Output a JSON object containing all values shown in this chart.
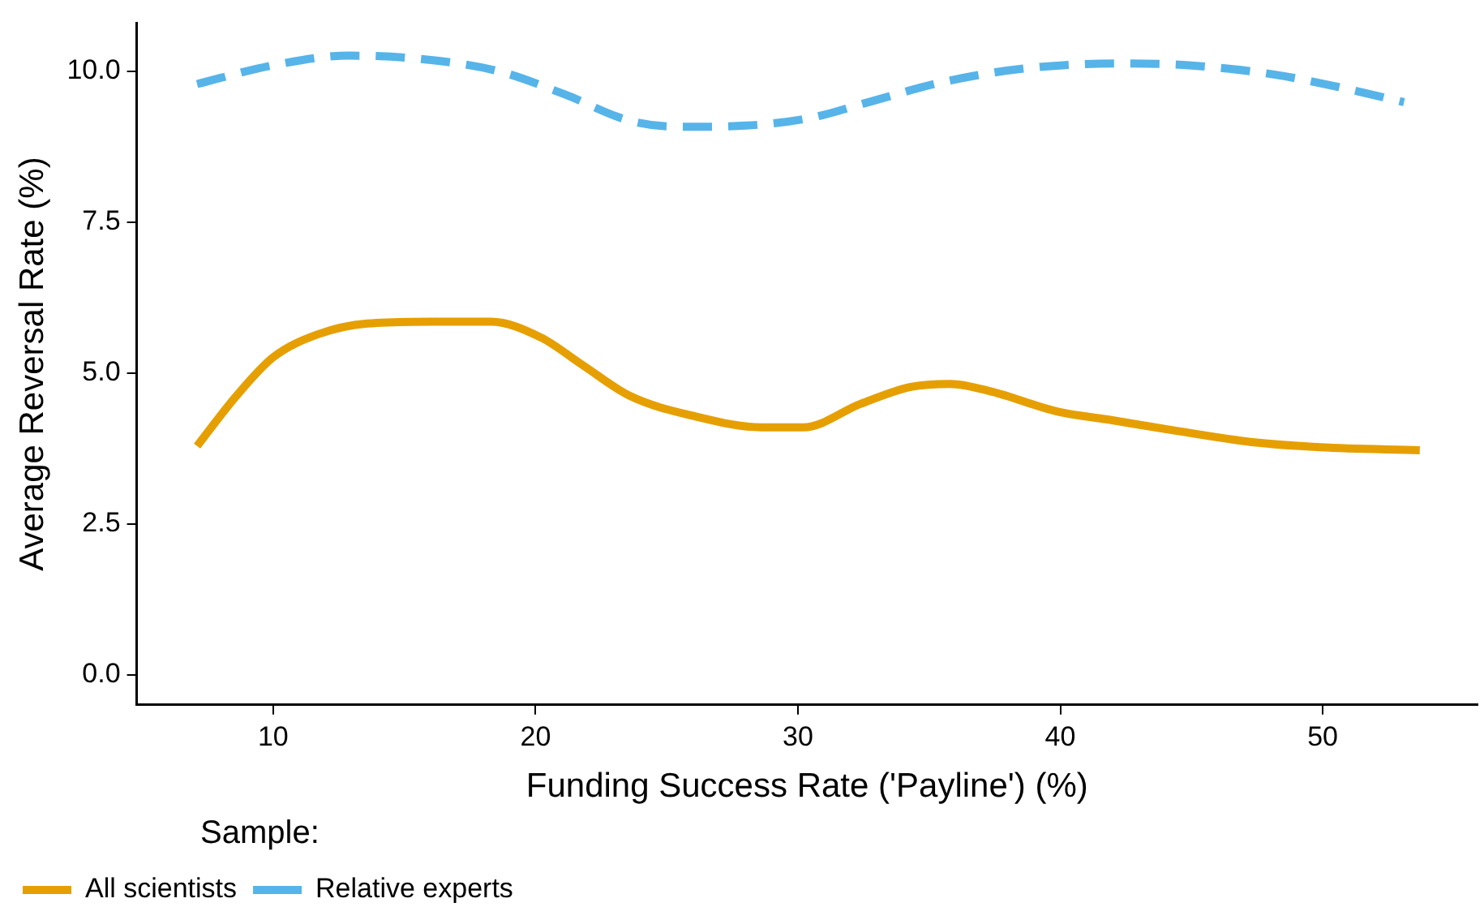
{
  "chart_data": {
    "type": "line",
    "xlabel": "Funding Success Rate ('Payline') (%)",
    "ylabel": "Average Reversal Rate (%)",
    "legend_title": "Sample:",
    "legend": "bottom",
    "grid": false,
    "marker": "none",
    "xlim": [
      4.8,
      55.9
    ],
    "xticks": [
      10,
      20,
      30,
      40,
      50
    ],
    "ylim": [
      -0.5,
      10.8
    ],
    "yticks": [
      {
        "value": 0,
        "label": "0.0"
      },
      {
        "value": 2.5,
        "label": "2.5"
      },
      {
        "value": 5,
        "label": "5.0"
      },
      {
        "value": 7.5,
        "label": "7.5"
      },
      {
        "value": 10,
        "label": "10.0"
      }
    ],
    "series": [
      {
        "name": "All scientists",
        "color": "#e69f00",
        "line_style": "solid",
        "x": [
          7.1,
          8.6,
          10,
          11.7,
          13.6,
          16.1,
          18.3,
          20.2,
          21.8,
          23.6,
          26.1,
          28.6,
          30.2,
          32.4,
          34.3,
          35.8,
          37.4,
          39.9,
          41.8,
          44.3,
          47.4,
          49.9,
          53.7
        ],
        "values": [
          3.79,
          4.62,
          5.26,
          5.64,
          5.82,
          5.85,
          5.85,
          5.59,
          5.13,
          4.62,
          4.28,
          4.1,
          4.1,
          4.49,
          4.77,
          4.82,
          4.69,
          4.36,
          4.23,
          4.05,
          3.85,
          3.77,
          3.72
        ]
      },
      {
        "name": "Relative experts",
        "color": "#56b4e9",
        "line_style": "dashed",
        "x": [
          7.1,
          10,
          12.9,
          15.5,
          18.6,
          21.1,
          23.6,
          25.5,
          28,
          30.5,
          32.7,
          35.5,
          38.7,
          42.4,
          44.9,
          48.1,
          50.6,
          53.1
        ],
        "values": [
          9.79,
          10.1,
          10.26,
          10.21,
          10,
          9.62,
          9.18,
          9.08,
          9.1,
          9.23,
          9.49,
          9.82,
          10.05,
          10.13,
          10.1,
          9.95,
          9.74,
          9.49
        ]
      }
    ]
  }
}
